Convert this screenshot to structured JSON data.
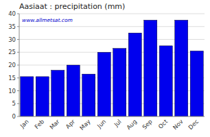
{
  "chart_data": {
    "type": "bar",
    "title": "Aasiaat : precipitation (mm)",
    "categories": [
      "Jan",
      "Feb",
      "Mar",
      "Apr",
      "May",
      "Jun",
      "Jul",
      "Aug",
      "Sep",
      "Oct",
      "Nov",
      "Dec"
    ],
    "values": [
      15.5,
      15.5,
      18.0,
      20.0,
      16.5,
      25.0,
      26.5,
      32.5,
      37.5,
      27.5,
      37.5,
      25.5
    ],
    "color": "#0000ee",
    "ylim": [
      0,
      40
    ],
    "yticks": [
      0,
      5,
      10,
      15,
      20,
      25,
      30,
      35,
      40
    ],
    "grid": true,
    "annotations": [
      "www.allmetsat.com"
    ]
  }
}
